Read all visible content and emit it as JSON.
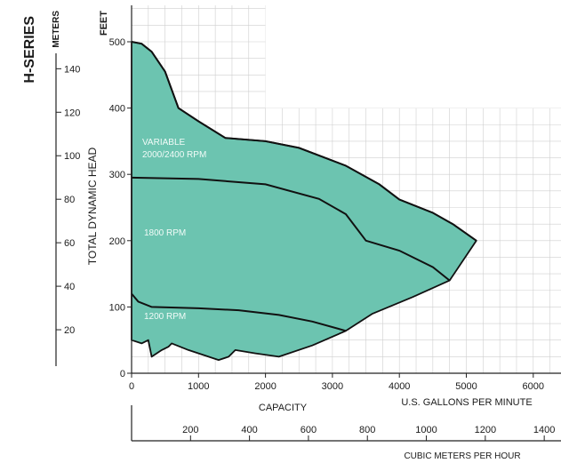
{
  "series_title": "H-SERIES",
  "colors": {
    "fill": "#6cc4b0",
    "curve": "#111111",
    "grid": "#cfcfcf",
    "axis": "#222222"
  },
  "chart_data": {
    "type": "area",
    "title": "",
    "xlabel": "CAPACITY",
    "x_unit_label": "U.S. GALLONS PER MINUTE",
    "x_ticks": [
      0,
      1000,
      2000,
      3000,
      4000,
      5000,
      6000
    ],
    "xlim": [
      0,
      6500
    ],
    "secondary_x_label": "CUBIC METERS PER HOUR",
    "secondary_x_ticks": [
      200,
      400,
      600,
      800,
      1000,
      1200,
      1400
    ],
    "ylabel": "TOTAL DYNAMIC HEAD",
    "y_unit_label": "FEET",
    "y_ticks": [
      0,
      100,
      200,
      300,
      400,
      500
    ],
    "ylim": [
      0,
      560
    ],
    "secondary_y_label": "METERS",
    "secondary_y_ticks": [
      20,
      40,
      60,
      80,
      100,
      120,
      140
    ],
    "grid": true,
    "operating_region": {
      "name": "",
      "points": [
        [
          0,
          500
        ],
        [
          150,
          497
        ],
        [
          300,
          485
        ],
        [
          500,
          455
        ],
        [
          700,
          400
        ],
        [
          1000,
          380
        ],
        [
          1400,
          355
        ],
        [
          2000,
          350
        ],
        [
          2500,
          340
        ],
        [
          3200,
          313
        ],
        [
          3700,
          285
        ],
        [
          4000,
          262
        ],
        [
          4500,
          242
        ],
        [
          4800,
          225
        ],
        [
          5150,
          200
        ],
        [
          4750,
          140
        ],
        [
          4200,
          115
        ],
        [
          3600,
          90
        ],
        [
          3200,
          64
        ],
        [
          2700,
          42
        ],
        [
          2200,
          25
        ],
        [
          1850,
          30
        ],
        [
          1550,
          35
        ],
        [
          1450,
          25
        ],
        [
          1300,
          20
        ],
        [
          1000,
          30
        ],
        [
          850,
          35
        ],
        [
          600,
          45
        ],
        [
          550,
          40
        ],
        [
          450,
          35
        ],
        [
          300,
          25
        ],
        [
          250,
          50
        ],
        [
          150,
          45
        ],
        [
          0,
          50
        ]
      ]
    },
    "series": [
      {
        "name": "VARIABLE",
        "label_line2": "2000/2400 RPM",
        "points": [
          [
            0,
            500
          ],
          [
            150,
            497
          ],
          [
            300,
            485
          ],
          [
            500,
            455
          ],
          [
            700,
            400
          ],
          [
            1000,
            380
          ],
          [
            1400,
            355
          ],
          [
            2000,
            350
          ],
          [
            2500,
            340
          ],
          [
            3200,
            313
          ],
          [
            3700,
            285
          ],
          [
            4000,
            262
          ],
          [
            4500,
            242
          ],
          [
            4800,
            225
          ],
          [
            5150,
            200
          ]
        ]
      },
      {
        "name": "1800 RPM",
        "points": [
          [
            0,
            295
          ],
          [
            1000,
            293
          ],
          [
            2000,
            285
          ],
          [
            2800,
            263
          ],
          [
            3200,
            240
          ],
          [
            3500,
            200
          ],
          [
            4000,
            185
          ],
          [
            4500,
            160
          ],
          [
            4750,
            140
          ]
        ]
      },
      {
        "name": "1200 RPM",
        "points": [
          [
            0,
            120
          ],
          [
            100,
            108
          ],
          [
            300,
            100
          ],
          [
            1000,
            98
          ],
          [
            1600,
            95
          ],
          [
            2200,
            88
          ],
          [
            2700,
            78
          ],
          [
            3200,
            64
          ]
        ]
      }
    ]
  }
}
